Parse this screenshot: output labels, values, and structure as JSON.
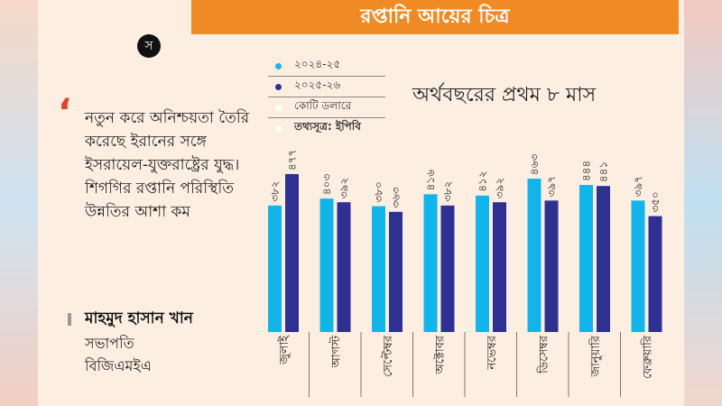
{
  "title": "রপ্তানি আয়ের চিত্র",
  "logo": "স",
  "quote": {
    "mark": "‘",
    "text": "নতুন করে অনিশ্চয়তা তৈরি করেছে ইরানের সঙ্গে ইসরায়েল-যুক্তরাষ্ট্রের যুদ্ধ। শিগগির রপ্তানি পরিস্থিতি উন্নতির আশা কম",
    "author": "মাহমুদ হাসান খান",
    "role": "সভাপতি",
    "org": "বিজিএমইএ"
  },
  "legend": {
    "s1": "২০২৪-২৫",
    "s2": "২০২৫-২৬",
    "unit": "কোটি ডলারে",
    "source": "তথ্যসূত্র: ইপিবি"
  },
  "chart_data": {
    "type": "bar",
    "title": "অর্থবছরের প্রথম ৮ মাস",
    "unit": "কোটি ডলারে",
    "categories": [
      "জুলাই",
      "আগস্ট",
      "সেপ্টেম্বর",
      "অক্টোবর",
      "নভেম্বর",
      "ডিসেম্বর",
      "জানুয়ারি",
      "ফেব্রুয়ারি"
    ],
    "series": [
      {
        "name": "২০২৪-২৫",
        "color": "#12b5ea",
        "values": [
          382,
          403,
          380,
          416,
          412,
          463,
          444,
          397
        ]
      },
      {
        "name": "২০২৫-২৬",
        "color": "#2e3192",
        "values": [
          477,
          392,
          363,
          382,
          392,
          397,
          441,
          350
        ]
      }
    ]
  }
}
